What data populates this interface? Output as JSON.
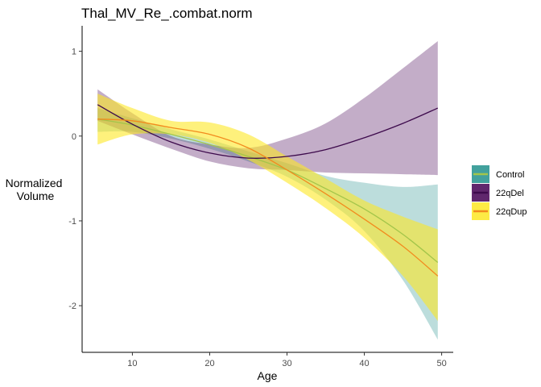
{
  "chart_data": {
    "type": "line",
    "title": "Thal_MV_Re_.combat.norm",
    "xlabel": "Age",
    "ylabel_lines": [
      "Normalized",
      "Volume"
    ],
    "xlim": [
      3.5,
      51.5
    ],
    "ylim": [
      -2.55,
      1.3
    ],
    "x_ticks": [
      10,
      20,
      30,
      40,
      50
    ],
    "y_ticks": [
      1,
      0,
      -1,
      -2
    ],
    "grid": false,
    "legend_position": "right",
    "series": [
      {
        "name": "Control",
        "line_color": "#a3c54a",
        "band_color": "#21908c",
        "band_opacity": 0.3,
        "points": [
          {
            "x": 5.5,
            "y": 0.2,
            "lo": 0.05,
            "hi": 0.33
          },
          {
            "x": 10,
            "y": 0.13,
            "lo": 0.05,
            "hi": 0.21
          },
          {
            "x": 15,
            "y": 0.02,
            "lo": -0.03,
            "hi": 0.08
          },
          {
            "x": 20,
            "y": -0.1,
            "lo": -0.15,
            "hi": -0.04
          },
          {
            "x": 25,
            "y": -0.24,
            "lo": -0.3,
            "hi": -0.18
          },
          {
            "x": 30,
            "y": -0.4,
            "lo": -0.48,
            "hi": -0.32
          },
          {
            "x": 35,
            "y": -0.62,
            "lo": -0.75,
            "hi": -0.47
          },
          {
            "x": 40,
            "y": -0.86,
            "lo": -1.12,
            "hi": -0.55
          },
          {
            "x": 45,
            "y": -1.16,
            "lo": -1.7,
            "hi": -0.6
          },
          {
            "x": 49.5,
            "y": -1.49,
            "lo": -2.4,
            "hi": -0.57
          }
        ]
      },
      {
        "name": "22qDel",
        "line_color": "#3d0a4c",
        "band_color": "#440154",
        "band_opacity": 0.32,
        "points": [
          {
            "x": 5.5,
            "y": 0.37,
            "lo": 0.18,
            "hi": 0.55
          },
          {
            "x": 10,
            "y": 0.14,
            "lo": 0.02,
            "hi": 0.27
          },
          {
            "x": 15,
            "y": -0.07,
            "lo": -0.15,
            "hi": 0.0
          },
          {
            "x": 20,
            "y": -0.2,
            "lo": -0.3,
            "hi": -0.1
          },
          {
            "x": 25,
            "y": -0.26,
            "lo": -0.38,
            "hi": -0.14
          },
          {
            "x": 30,
            "y": -0.24,
            "lo": -0.4,
            "hi": -0.03
          },
          {
            "x": 35,
            "y": -0.16,
            "lo": -0.43,
            "hi": 0.15
          },
          {
            "x": 40,
            "y": -0.02,
            "lo": -0.44,
            "hi": 0.45
          },
          {
            "x": 45,
            "y": 0.15,
            "lo": -0.45,
            "hi": 0.8
          },
          {
            "x": 49.5,
            "y": 0.33,
            "lo": -0.46,
            "hi": 1.12
          }
        ]
      },
      {
        "name": "22qDup",
        "line_color": "#f28b1e",
        "band_color": "#fde725",
        "band_opacity": 0.6,
        "points": [
          {
            "x": 5.5,
            "y": 0.2,
            "lo": -0.1,
            "hi": 0.5
          },
          {
            "x": 10,
            "y": 0.18,
            "lo": 0.02,
            "hi": 0.33
          },
          {
            "x": 15,
            "y": 0.1,
            "lo": 0.02,
            "hi": 0.18
          },
          {
            "x": 20,
            "y": 0.02,
            "lo": -0.08,
            "hi": 0.16
          },
          {
            "x": 25,
            "y": -0.14,
            "lo": -0.28,
            "hi": 0.02
          },
          {
            "x": 30,
            "y": -0.4,
            "lo": -0.55,
            "hi": -0.24
          },
          {
            "x": 35,
            "y": -0.68,
            "lo": -0.85,
            "hi": -0.5
          },
          {
            "x": 40,
            "y": -0.98,
            "lo": -1.2,
            "hi": -0.76
          },
          {
            "x": 45,
            "y": -1.3,
            "lo": -1.65,
            "hi": -0.95
          },
          {
            "x": 49.5,
            "y": -1.65,
            "lo": -2.18,
            "hi": -1.1
          }
        ]
      }
    ]
  }
}
